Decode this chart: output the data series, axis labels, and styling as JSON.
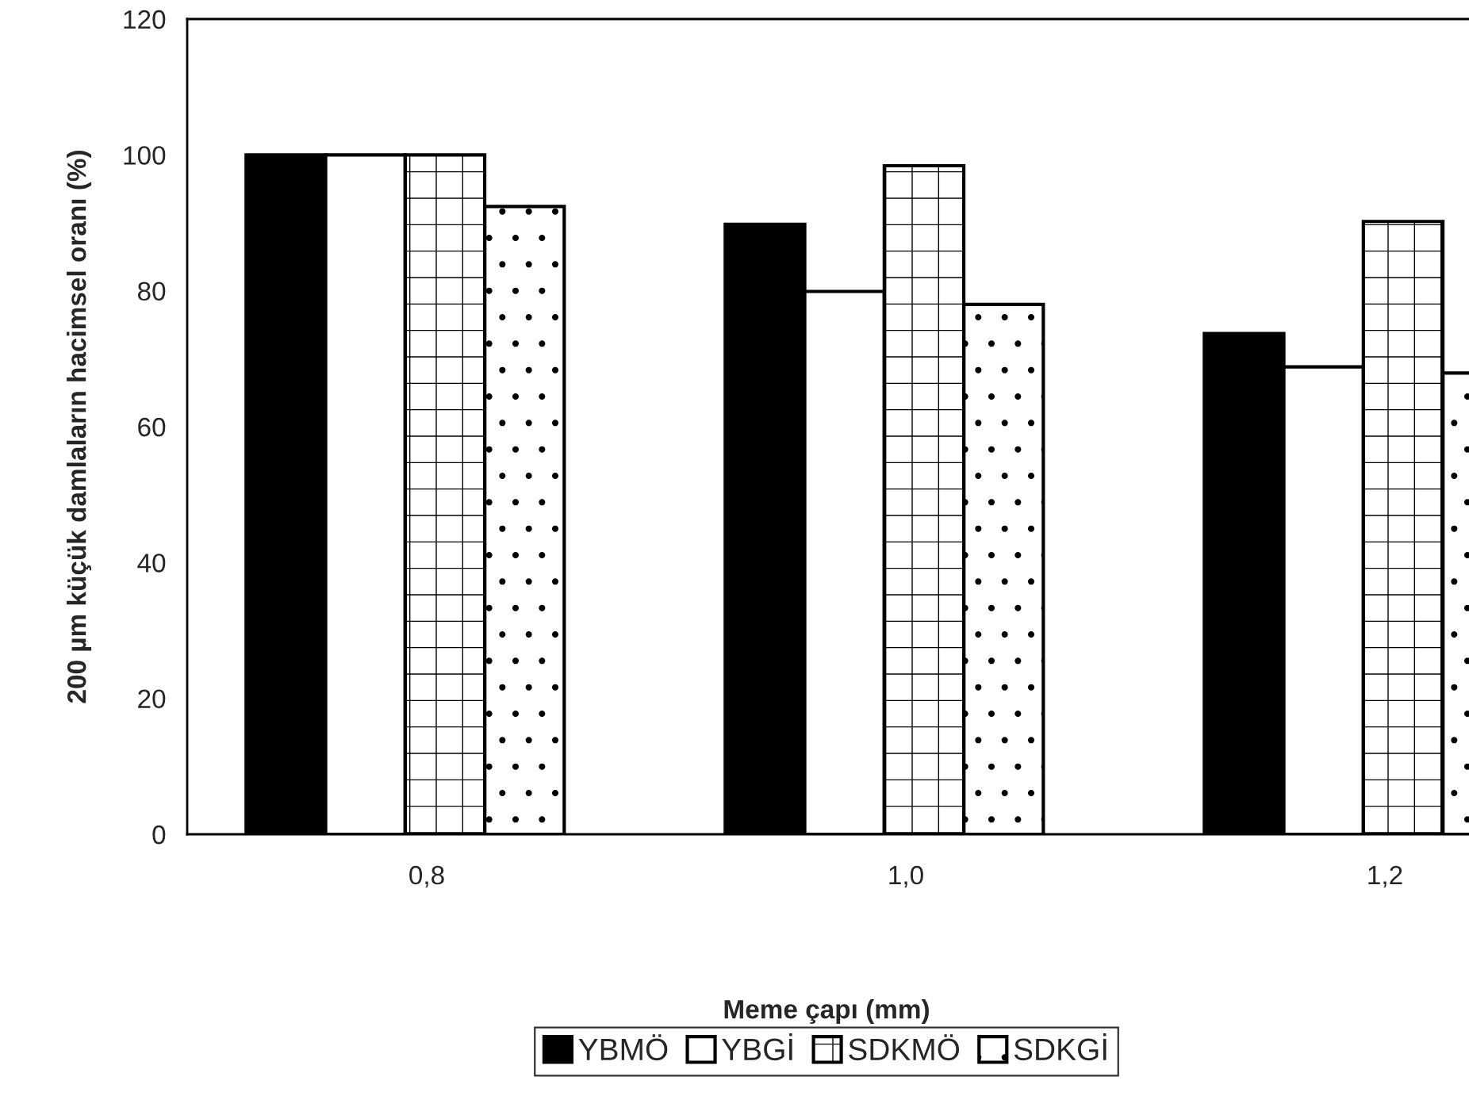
{
  "chart_data": {
    "type": "bar",
    "xlabel": "Meme çapı (mm)",
    "ylabel": "200 µm küçük damlaların hacimsel oranı (%)",
    "categories": [
      "0,8",
      "1,0",
      "1,2"
    ],
    "series": [
      {
        "name": "YBMÖ",
        "color": "#000000",
        "values": [
          100,
          89.8,
          73.7
        ]
      },
      {
        "name": "YBGİ",
        "color": "#ffffff",
        "values": [
          100,
          79.9,
          68.8
        ]
      },
      {
        "name": "SDKMÖ",
        "color": "#000000",
        "values": [
          100,
          98.4,
          90.2
        ]
      },
      {
        "name": "SDKGİ",
        "color": "#000000",
        "values": [
          92.4,
          78.0,
          67.9
        ]
      }
    ],
    "ylim": [
      0,
      120
    ],
    "yticks": [
      0,
      20,
      40,
      60,
      80,
      100,
      120
    ],
    "grid": false,
    "legend": "bottom"
  }
}
